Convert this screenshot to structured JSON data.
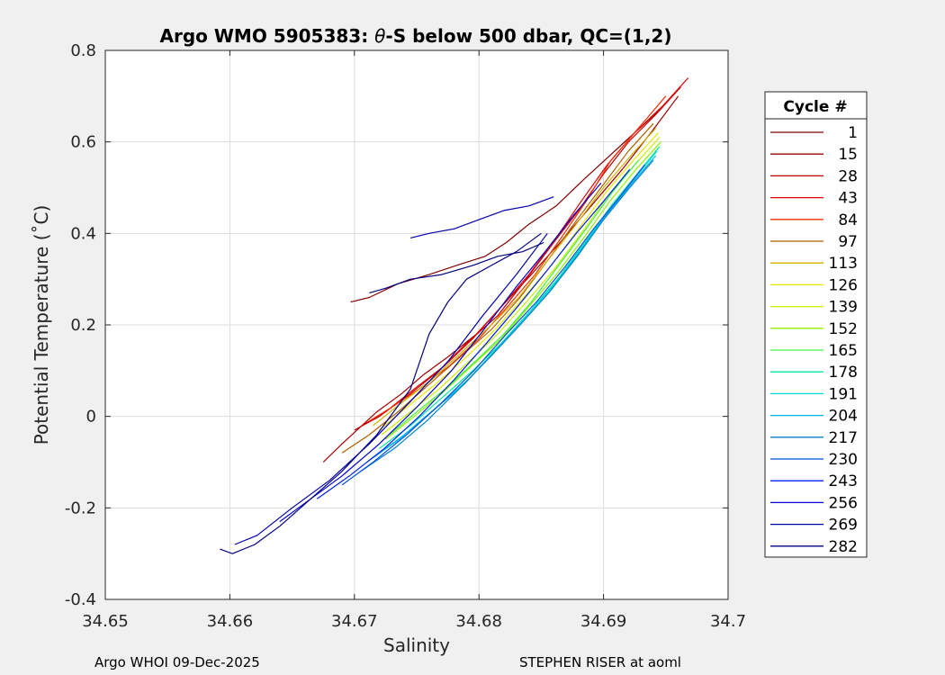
{
  "chart_data": {
    "type": "line",
    "title_prefix": "Argo WMO 5905383: ",
    "title_symbol": "θ",
    "title_suffix": "-S below 500 dbar,  QC=(1,2)",
    "xlabel": "Salinity",
    "ylabel": "Potential Temperature (˚C)",
    "xlim": [
      34.65,
      34.7
    ],
    "ylim": [
      -0.4,
      0.8
    ],
    "x_ticks": [
      "34.65",
      "34.66",
      "34.67",
      "34.68",
      "34.69",
      "34.7"
    ],
    "y_ticks": [
      "-0.4",
      "-0.2",
      "0",
      "0.2",
      "0.4",
      "0.6",
      "0.8"
    ],
    "grid": true,
    "legend": {
      "title": "Cycle #",
      "placement": "right-outside",
      "entries": [
        {
          "label": "1",
          "color": "#800000"
        },
        {
          "label": "15",
          "color": "#a00000"
        },
        {
          "label": "28",
          "color": "#c00000"
        },
        {
          "label": "43",
          "color": "#e00000"
        },
        {
          "label": "84",
          "color": "#ff3000"
        },
        {
          "label": "97",
          "color": "#b06000"
        },
        {
          "label": "113",
          "color": "#d0b000"
        },
        {
          "label": "126",
          "color": "#e8e800"
        },
        {
          "label": "139",
          "color": "#c8f000"
        },
        {
          "label": "152",
          "color": "#90f000"
        },
        {
          "label": "165",
          "color": "#40f040"
        },
        {
          "label": "178",
          "color": "#00e8a0"
        },
        {
          "label": "191",
          "color": "#00d8d8"
        },
        {
          "label": "204",
          "color": "#00b0e8"
        },
        {
          "label": "217",
          "color": "#0080d0"
        },
        {
          "label": "230",
          "color": "#0050e0"
        },
        {
          "label": "243",
          "color": "#0020f0"
        },
        {
          "label": "256",
          "color": "#0000d0"
        },
        {
          "label": "269",
          "color": "#0000a8"
        },
        {
          "label": "282",
          "color": "#000080"
        }
      ]
    },
    "series": [
      {
        "color": "#800000",
        "x": [
          34.6697,
          34.6712,
          34.6735,
          34.676,
          34.6782,
          34.6805,
          34.6822,
          34.684,
          34.6862,
          34.6885,
          34.6905,
          34.6925,
          34.6945
        ],
        "y": [
          0.25,
          0.26,
          0.29,
          0.31,
          0.33,
          0.35,
          0.38,
          0.42,
          0.46,
          0.52,
          0.57,
          0.62,
          0.67
        ]
      },
      {
        "color": "#a00000",
        "x": [
          34.6675,
          34.669,
          34.6702,
          34.6718,
          34.6738,
          34.6755,
          34.6775,
          34.6798,
          34.6818,
          34.6842,
          34.6865,
          34.689,
          34.6915,
          34.6938,
          34.696
        ],
        "y": [
          -0.1,
          -0.06,
          -0.03,
          0.01,
          0.05,
          0.09,
          0.13,
          0.18,
          0.24,
          0.31,
          0.38,
          0.46,
          0.54,
          0.62,
          0.7
        ]
      },
      {
        "color": "#c00000",
        "x": [
          34.67,
          34.672,
          34.6745,
          34.6768,
          34.679,
          34.6815,
          34.6838,
          34.686,
          34.688,
          34.69,
          34.692,
          34.6942,
          34.6962
        ],
        "y": [
          -0.03,
          0.0,
          0.05,
          0.1,
          0.16,
          0.22,
          0.3,
          0.38,
          0.45,
          0.53,
          0.6,
          0.66,
          0.72
        ]
      },
      {
        "color": "#e00000",
        "x": [
          34.6706,
          34.6725,
          34.6748,
          34.6772,
          34.6795,
          34.6818,
          34.684,
          34.6862,
          34.6882,
          34.6903,
          34.6925,
          34.6948,
          34.6968
        ],
        "y": [
          -0.02,
          0.01,
          0.06,
          0.11,
          0.17,
          0.24,
          0.31,
          0.39,
          0.47,
          0.55,
          0.62,
          0.68,
          0.74
        ]
      },
      {
        "color": "#ff3000",
        "x": [
          34.6712,
          34.673,
          34.6752,
          34.6776,
          34.68,
          34.6823,
          34.6845,
          34.6866,
          34.6886,
          34.6906,
          34.6928,
          34.695
        ],
        "y": [
          -0.01,
          0.02,
          0.06,
          0.11,
          0.17,
          0.24,
          0.31,
          0.39,
          0.47,
          0.56,
          0.63,
          0.7
        ]
      },
      {
        "color": "#b06000",
        "x": [
          34.669,
          34.6712,
          34.6735,
          34.676,
          34.6785,
          34.681,
          34.6833,
          34.6855,
          34.6876,
          34.6898,
          34.692,
          34.694
        ],
        "y": [
          -0.08,
          -0.04,
          0.01,
          0.07,
          0.13,
          0.19,
          0.26,
          0.34,
          0.42,
          0.5,
          0.58,
          0.64
        ]
      },
      {
        "color": "#d0b000",
        "x": [
          34.6715,
          34.6738,
          34.6762,
          34.6786,
          34.681,
          34.6832,
          34.6855,
          34.6878,
          34.69,
          34.6922,
          34.6942
        ],
        "y": [
          -0.02,
          0.03,
          0.08,
          0.14,
          0.2,
          0.26,
          0.34,
          0.42,
          0.5,
          0.57,
          0.63
        ]
      },
      {
        "color": "#e8e800",
        "x": [
          34.672,
          34.6742,
          34.6765,
          34.679,
          34.6813,
          34.6836,
          34.6858,
          34.688,
          34.6902,
          34.6924,
          34.6944
        ],
        "y": [
          -0.03,
          0.02,
          0.07,
          0.13,
          0.19,
          0.26,
          0.33,
          0.41,
          0.49,
          0.56,
          0.62
        ]
      },
      {
        "color": "#c8f000",
        "x": [
          34.6722,
          34.6745,
          34.6768,
          34.6792,
          34.6815,
          34.6838,
          34.686,
          34.6882,
          34.6903,
          34.6925,
          34.6945
        ],
        "y": [
          -0.04,
          0.01,
          0.06,
          0.12,
          0.18,
          0.25,
          0.32,
          0.4,
          0.48,
          0.55,
          0.61
        ]
      },
      {
        "color": "#90f000",
        "x": [
          34.6725,
          34.6748,
          34.677,
          34.6794,
          34.6818,
          34.684,
          34.6862,
          34.6884,
          34.6905,
          34.6926,
          34.6946
        ],
        "y": [
          -0.05,
          0.0,
          0.05,
          0.11,
          0.17,
          0.24,
          0.31,
          0.39,
          0.47,
          0.54,
          0.6
        ]
      },
      {
        "color": "#40f040",
        "x": [
          34.6728,
          34.675,
          34.6773,
          34.6797,
          34.682,
          34.6842,
          34.6864,
          34.6886,
          34.6907,
          34.6928
        ],
        "y": [
          -0.04,
          0.01,
          0.06,
          0.12,
          0.18,
          0.25,
          0.33,
          0.41,
          0.49,
          0.56
        ]
      },
      {
        "color": "#00e8a0",
        "x": [
          34.672,
          34.6745,
          34.677,
          34.6795,
          34.6818,
          34.6841,
          34.6863,
          34.6885,
          34.6906,
          34.6927,
          34.6945
        ],
        "y": [
          -0.07,
          -0.02,
          0.04,
          0.1,
          0.16,
          0.23,
          0.3,
          0.38,
          0.46,
          0.53,
          0.59
        ]
      },
      {
        "color": "#00d8d8",
        "x": [
          34.6715,
          34.674,
          34.6766,
          34.6791,
          34.6815,
          34.6838,
          34.6861,
          34.6883,
          34.6904,
          34.6925,
          34.6943
        ],
        "y": [
          -0.09,
          -0.04,
          0.02,
          0.08,
          0.15,
          0.22,
          0.29,
          0.37,
          0.45,
          0.52,
          0.58
        ]
      },
      {
        "color": "#00b0e8",
        "x": [
          34.671,
          34.6736,
          34.6762,
          34.6788,
          34.6812,
          34.6836,
          34.6859,
          34.6881,
          34.6902,
          34.6923,
          34.6942
        ],
        "y": [
          -0.1,
          -0.05,
          0.01,
          0.07,
          0.14,
          0.21,
          0.28,
          0.36,
          0.44,
          0.51,
          0.57
        ]
      },
      {
        "color": "#0080d0",
        "x": [
          34.6705,
          34.6732,
          34.6758,
          34.6784,
          34.6809,
          34.6833,
          34.6856,
          34.6879,
          34.69,
          34.6921,
          34.694
        ],
        "y": [
          -0.12,
          -0.07,
          -0.01,
          0.06,
          0.13,
          0.2,
          0.27,
          0.35,
          0.43,
          0.5,
          0.56
        ]
      },
      {
        "color": "#0050e0",
        "x": [
          34.669,
          34.6715,
          34.6742,
          34.677,
          34.6796,
          34.6822,
          34.6846,
          34.687,
          34.6892,
          34.6913,
          34.6933
        ],
        "y": [
          -0.15,
          -0.1,
          -0.04,
          0.03,
          0.1,
          0.18,
          0.25,
          0.33,
          0.41,
          0.48,
          0.55
        ]
      },
      {
        "color": "#0020f0",
        "x": [
          34.667,
          34.6696,
          34.6724,
          34.6752,
          34.678,
          34.6806,
          34.6831,
          34.6855,
          34.6878,
          34.69,
          34.6921
        ],
        "y": [
          -0.18,
          -0.13,
          -0.07,
          0.0,
          0.08,
          0.16,
          0.24,
          0.32,
          0.4,
          0.47,
          0.54
        ]
      },
      {
        "color": "#0000d0",
        "x": [
          34.664,
          34.666,
          34.669,
          34.672,
          34.675,
          34.6778,
          34.6804,
          34.6829,
          34.6853,
          34.6876,
          34.6898
        ],
        "y": [
          -0.23,
          -0.19,
          -0.13,
          -0.06,
          0.02,
          0.1,
          0.19,
          0.28,
          0.36,
          0.44,
          0.51
        ]
      },
      {
        "color": "#0000a8",
        "x": [
          34.6604,
          34.6622,
          34.665,
          34.668,
          34.6712,
          34.6744,
          34.6775,
          34.6803,
          34.683,
          34.6855
        ],
        "y": [
          -0.28,
          -0.26,
          -0.2,
          -0.14,
          -0.06,
          0.03,
          0.12,
          0.22,
          0.31,
          0.4
        ]
      },
      {
        "color": "#000080",
        "x": [
          34.6592,
          34.6602,
          34.662,
          34.664,
          34.6665,
          34.669,
          34.6718,
          34.6745,
          34.676,
          34.6775,
          34.679,
          34.681,
          34.683,
          34.685
        ],
        "y": [
          -0.29,
          -0.3,
          -0.28,
          -0.24,
          -0.18,
          -0.12,
          -0.04,
          0.06,
          0.18,
          0.25,
          0.3,
          0.33,
          0.36,
          0.4
        ]
      },
      {
        "color": "#000080",
        "x": [
          34.6712,
          34.6725,
          34.6745,
          34.677,
          34.6795,
          34.6815,
          34.6835,
          34.6852
        ],
        "y": [
          0.27,
          0.28,
          0.3,
          0.31,
          0.33,
          0.35,
          0.36,
          0.38
        ]
      },
      {
        "color": "#0000a8",
        "x": [
          34.6745,
          34.676,
          34.678,
          34.68,
          34.682,
          34.684,
          34.686
        ],
        "y": [
          0.39,
          0.4,
          0.41,
          0.43,
          0.45,
          0.46,
          0.48
        ]
      }
    ]
  },
  "footer": {
    "left": "Argo WHOI 09-Dec-2025",
    "right": "STEPHEN RISER at aoml"
  }
}
